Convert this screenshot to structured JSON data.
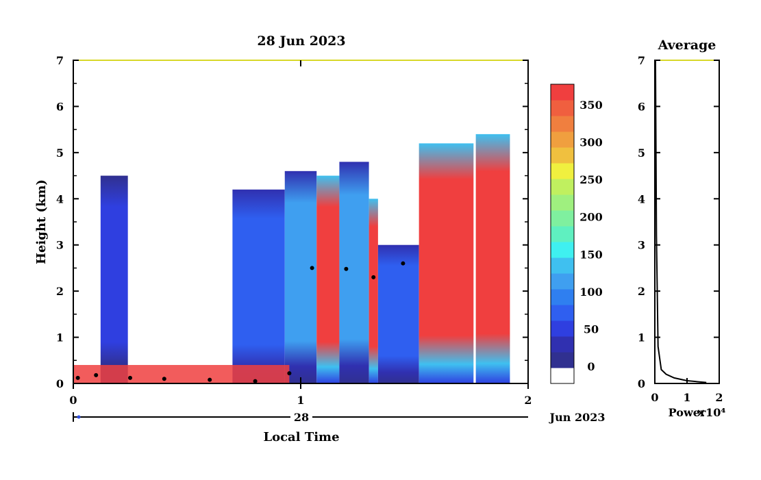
{
  "chart_data": [
    {
      "type": "heatmap",
      "title": "28 Jun 2023",
      "xlabel": "Local Time",
      "ylabel": "Height (km)",
      "x_ticks": [
        "0",
        "1",
        "2"
      ],
      "y_ticks": [
        "0",
        "1",
        "2",
        "3",
        "4",
        "5",
        "6",
        "7"
      ],
      "xlim": [
        0,
        2
      ],
      "ylim": [
        0,
        7
      ],
      "date_axis": {
        "day": "28",
        "month_year": "Jun 2023"
      },
      "colorbar": {
        "ticks": [
          "0",
          "50",
          "100",
          "150",
          "200",
          "250",
          "300",
          "350"
        ],
        "range": [
          0,
          380
        ],
        "colors": [
          "#ffffff",
          "#303090",
          "#3030b0",
          "#2f3fe0",
          "#2f5ff0",
          "#2f7ff0",
          "#3f9ff0",
          "#3fc0f0",
          "#3ff0f0",
          "#5ff0c0",
          "#7ff09f",
          "#9ff07f",
          "#c0f05f",
          "#f0f03f",
          "#f0c03f",
          "#f09f3f",
          "#f07f3f",
          "#f05f3f",
          "#f03f3f"
        ]
      },
      "regions": [
        {
          "x": [
            0.12,
            0.24
          ],
          "top_km": 4.5,
          "level": 60
        },
        {
          "x": [
            0.7,
            0.93
          ],
          "top_km": 4.2,
          "level": 70
        },
        {
          "x": [
            0.93,
            1.07
          ],
          "top_km": 4.6,
          "level": 110
        },
        {
          "x": [
            1.07,
            1.17
          ],
          "top_km": 4.5,
          "level": 380
        },
        {
          "x": [
            1.17,
            1.3
          ],
          "top_km": 4.8,
          "level": 120
        },
        {
          "x": [
            1.3,
            1.34
          ],
          "top_km": 4.0,
          "level": 380
        },
        {
          "x": [
            1.34,
            1.52
          ],
          "top_km": 3.0,
          "level": 80
        },
        {
          "x": [
            1.52,
            1.76
          ],
          "top_km": 5.2,
          "level": 380
        },
        {
          "x": [
            1.77,
            1.92
          ],
          "top_km": 5.4,
          "level": 380
        }
      ],
      "boundary_layer_km": [
        {
          "x": 0.02,
          "y": 0.12
        },
        {
          "x": 0.1,
          "y": 0.18
        },
        {
          "x": 0.25,
          "y": 0.12
        },
        {
          "x": 0.4,
          "y": 0.1
        },
        {
          "x": 0.6,
          "y": 0.08
        },
        {
          "x": 0.8,
          "y": 0.05
        },
        {
          "x": 0.95,
          "y": 0.22
        },
        {
          "x": 1.05,
          "y": 2.5
        },
        {
          "x": 1.2,
          "y": 2.48
        },
        {
          "x": 1.32,
          "y": 2.3
        },
        {
          "x": 1.45,
          "y": 2.6
        }
      ]
    },
    {
      "type": "line",
      "title": "Average",
      "xlabel": "Power",
      "x_multiplier": "×10⁴",
      "x_ticks": [
        "0",
        "1",
        "2"
      ],
      "y_ticks": [
        "0",
        "1",
        "2",
        "3",
        "4",
        "5",
        "6",
        "7"
      ],
      "xlim": [
        0,
        2
      ],
      "ylim": [
        0,
        7
      ],
      "series": [
        {
          "x": [
            0.02,
            0.05,
            0.1,
            0.2,
            0.35,
            0.6,
            1.0,
            1.6
          ],
          "y": [
            7.0,
            3.2,
            0.8,
            0.3,
            0.2,
            0.12,
            0.06,
            0.02
          ]
        }
      ]
    }
  ]
}
